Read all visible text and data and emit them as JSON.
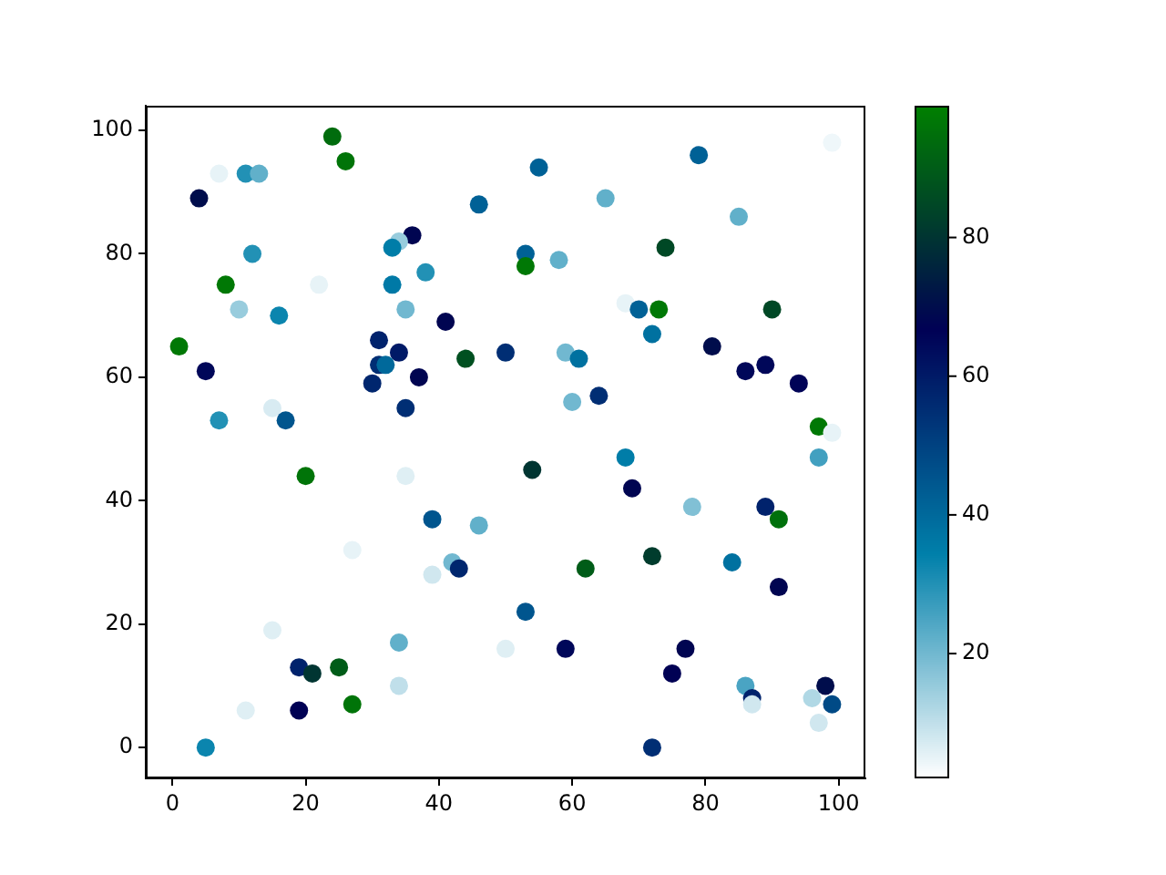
{
  "chart_data": {
    "type": "scatter",
    "x": [
      24,
      26,
      7,
      11,
      13,
      4,
      46,
      36,
      34,
      33,
      12,
      8,
      22,
      33,
      38,
      10,
      35,
      16,
      41,
      1,
      31,
      34,
      44,
      50,
      5,
      31,
      32,
      30,
      37,
      15,
      7,
      17,
      35,
      99,
      55,
      79,
      65,
      85,
      74,
      53,
      53,
      58,
      68,
      70,
      73,
      90,
      72,
      59,
      61,
      81,
      86,
      89,
      94,
      60,
      64,
      97,
      99,
      20,
      35,
      39,
      46,
      27,
      42,
      43,
      39,
      15,
      34,
      50,
      19,
      21,
      25,
      11,
      19,
      27,
      34,
      5,
      54,
      68,
      97,
      69,
      78,
      89,
      91,
      62,
      72,
      84,
      91,
      53,
      59,
      77,
      75,
      86,
      87,
      87,
      98,
      96,
      99,
      97,
      72
    ],
    "values": [
      99,
      95,
      93,
      93,
      93,
      89,
      88,
      83,
      82,
      81,
      80,
      75,
      75,
      75,
      77,
      71,
      71,
      70,
      69,
      65,
      66,
      64,
      63,
      64,
      61,
      62,
      62,
      59,
      60,
      55,
      53,
      53,
      55,
      98,
      94,
      96,
      89,
      86,
      81,
      80,
      78,
      79,
      72,
      71,
      71,
      71,
      67,
      64,
      63,
      65,
      61,
      62,
      59,
      56,
      57,
      52,
      51,
      44,
      44,
      37,
      36,
      32,
      30,
      29,
      28,
      19,
      17,
      16,
      13,
      12,
      13,
      6,
      6,
      7,
      10,
      0,
      45,
      47,
      47,
      42,
      39,
      39,
      37,
      29,
      31,
      30,
      26,
      22,
      16,
      16,
      12,
      10,
      8,
      7,
      10,
      8,
      7,
      4,
      0
    ],
    "cvalues": [
      94,
      96,
      5,
      30,
      22,
      70,
      42,
      68,
      15,
      35,
      30,
      97,
      5,
      36,
      30,
      15,
      20,
      33,
      68,
      97,
      58,
      60,
      87,
      55,
      65,
      55,
      40,
      57,
      68,
      7,
      30,
      45,
      55,
      4,
      42,
      42,
      22,
      22,
      85,
      42,
      97,
      22,
      5,
      42,
      97,
      85,
      38,
      20,
      38,
      70,
      65,
      65,
      66,
      20,
      55,
      97,
      5,
      96,
      6,
      45,
      22,
      5,
      20,
      57,
      8,
      6,
      22,
      6,
      58,
      80,
      90,
      6,
      67,
      96,
      10,
      33,
      80,
      35,
      26,
      68,
      18,
      58,
      95,
      90,
      82,
      38,
      68,
      45,
      65,
      68,
      67,
      25,
      58,
      8,
      70,
      12,
      48,
      8,
      55
    ],
    "xlim": [
      -4,
      104
    ],
    "ylim": [
      -5,
      104
    ],
    "xticks": [
      0,
      20,
      40,
      60,
      80,
      100
    ],
    "yticks": [
      0,
      20,
      40,
      60,
      80,
      100
    ],
    "clim": [
      2,
      99
    ],
    "cticks": [
      20,
      40,
      60,
      80
    ],
    "marker": "circle"
  }
}
